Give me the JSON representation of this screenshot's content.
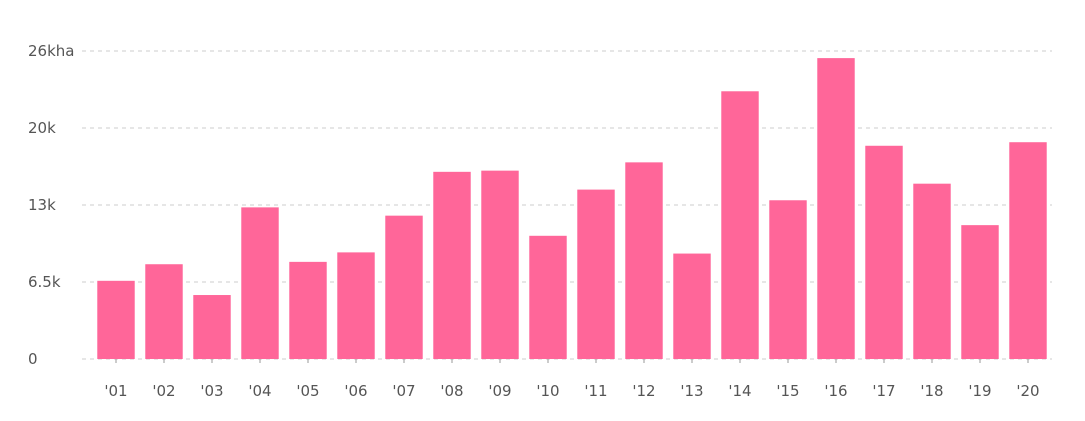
{
  "colors": {
    "bar": "#ff6699",
    "grid": "#cccccc",
    "text": "#555555",
    "background": "#ffffff"
  },
  "chart_data": {
    "type": "bar",
    "title": "",
    "xlabel": "",
    "ylabel": "",
    "unit": "kha",
    "ylim": [
      0,
      26000
    ],
    "grid": true,
    "legend": "none",
    "y_ticks": [
      {
        "value": 0,
        "label": "0"
      },
      {
        "value": 6500,
        "label": "6.5k"
      },
      {
        "value": 13000,
        "label": "13k"
      },
      {
        "value": 19500,
        "label": "20k"
      },
      {
        "value": 26000,
        "label": "26kha"
      }
    ],
    "categories": [
      "'01",
      "'02",
      "'03",
      "'04",
      "'05",
      "'06",
      "'07",
      "'08",
      "'09",
      "'10",
      "'11",
      "'12",
      "'13",
      "'14",
      "'15",
      "'16",
      "'17",
      "'18",
      "'19",
      "'20"
    ],
    "values": [
      6600,
      8000,
      5400,
      12800,
      8200,
      9000,
      12100,
      15800,
      15900,
      10400,
      14300,
      16600,
      8900,
      22600,
      13400,
      25400,
      18000,
      14800,
      11300,
      18300
    ]
  }
}
